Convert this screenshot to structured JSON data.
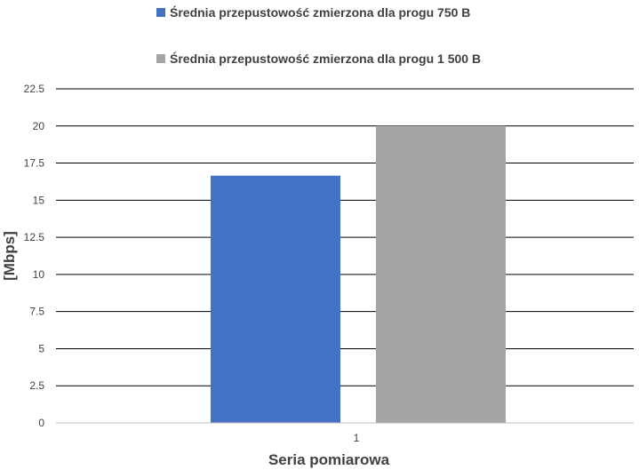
{
  "chart_data": {
    "type": "bar",
    "categories": [
      "1"
    ],
    "series": [
      {
        "name": "Średnia przepustowość zmierzona dla progu 750 B",
        "values": [
          16.65
        ],
        "color": "#4472c4"
      },
      {
        "name": "Średnia przepustowość zmierzona dla progu 1 500 B",
        "values": [
          20.0
        ],
        "color": "#a5a5a5"
      }
    ],
    "title": "",
    "xlabel": "Seria pomiarowa",
    "ylabel": "[Mbps]",
    "ylim": [
      0,
      22.5
    ],
    "yticks": [
      "0",
      "2.5",
      "5",
      "7.5",
      "10",
      "12.5",
      "15",
      "17.5",
      "20",
      "22.5"
    ],
    "grid": true,
    "legend_position": "top"
  }
}
